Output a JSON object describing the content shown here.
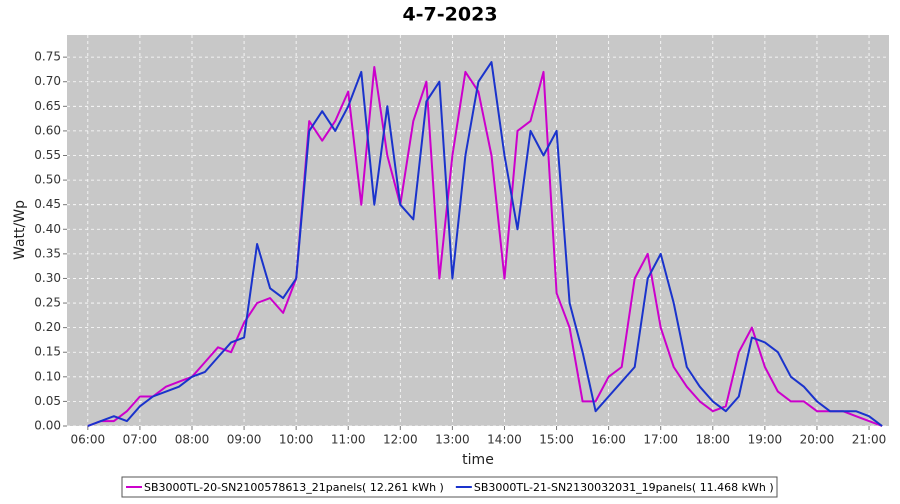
{
  "chart_data": {
    "type": "line",
    "title": "4-7-2023",
    "x_label": "time",
    "y_label": "Watt/Wp",
    "x": [
      "06:00",
      "06:15",
      "06:30",
      "06:45",
      "07:00",
      "07:15",
      "07:30",
      "07:45",
      "08:00",
      "08:15",
      "08:30",
      "08:45",
      "09:00",
      "09:15",
      "09:30",
      "09:45",
      "10:00",
      "10:15",
      "10:30",
      "10:45",
      "11:00",
      "11:15",
      "11:30",
      "11:45",
      "12:00",
      "12:15",
      "12:30",
      "12:45",
      "13:00",
      "13:15",
      "13:30",
      "13:45",
      "14:00",
      "14:15",
      "14:30",
      "14:45",
      "15:00",
      "15:15",
      "15:30",
      "15:45",
      "16:00",
      "16:15",
      "16:30",
      "16:45",
      "17:00",
      "17:15",
      "17:30",
      "17:45",
      "18:00",
      "18:15",
      "18:30",
      "18:45",
      "19:00",
      "19:15",
      "19:30",
      "19:45",
      "20:00",
      "20:15",
      "20:30",
      "20:45",
      "21:00",
      "21:15"
    ],
    "series": [
      {
        "name": "SB3000TL-20-SN2100578613_21panels( 12.261 kWh )",
        "color": "#cc00cc",
        "values": [
          0.0,
          0.01,
          0.01,
          0.03,
          0.06,
          0.06,
          0.08,
          0.09,
          0.1,
          0.13,
          0.16,
          0.15,
          0.21,
          0.25,
          0.26,
          0.23,
          0.3,
          0.62,
          0.58,
          0.62,
          0.68,
          0.45,
          0.73,
          0.55,
          0.45,
          0.62,
          0.7,
          0.3,
          0.55,
          0.72,
          0.68,
          0.55,
          0.3,
          0.6,
          0.62,
          0.72,
          0.27,
          0.2,
          0.05,
          0.05,
          0.1,
          0.12,
          0.3,
          0.35,
          0.2,
          0.12,
          0.08,
          0.05,
          0.03,
          0.04,
          0.15,
          0.2,
          0.12,
          0.07,
          0.05,
          0.05,
          0.03,
          0.03,
          0.03,
          0.02,
          0.01,
          0.0
        ]
      },
      {
        "name": "SB3000TL-21-SN2130032031_19panels( 11.468 kWh )",
        "color": "#1a33cc",
        "values": [
          0.0,
          0.01,
          0.02,
          0.01,
          0.04,
          0.06,
          0.07,
          0.08,
          0.1,
          0.11,
          0.14,
          0.17,
          0.18,
          0.37,
          0.28,
          0.26,
          0.3,
          0.6,
          0.64,
          0.6,
          0.65,
          0.72,
          0.45,
          0.65,
          0.45,
          0.42,
          0.66,
          0.7,
          0.3,
          0.55,
          0.7,
          0.74,
          0.55,
          0.4,
          0.6,
          0.55,
          0.6,
          0.25,
          0.15,
          0.03,
          0.06,
          0.09,
          0.12,
          0.3,
          0.35,
          0.25,
          0.12,
          0.08,
          0.05,
          0.03,
          0.06,
          0.18,
          0.17,
          0.15,
          0.1,
          0.08,
          0.05,
          0.03,
          0.03,
          0.03,
          0.02,
          0.0
        ]
      }
    ],
    "xlim": [
      "05:36",
      "21:23"
    ],
    "xticks": [
      "06:00",
      "07:00",
      "08:00",
      "09:00",
      "10:00",
      "11:00",
      "12:00",
      "13:00",
      "14:00",
      "15:00",
      "16:00",
      "17:00",
      "18:00",
      "19:00",
      "20:00",
      "21:00"
    ],
    "ylim": [
      0,
      0.795
    ],
    "yticks": [
      {
        "value": 0,
        "label": "0.00"
      },
      0.05,
      {
        "value": 0.1,
        "label": "0.10"
      },
      0.15,
      {
        "value": 0.2,
        "label": "0.20"
      },
      0.25,
      {
        "value": 0.3,
        "label": "0.30"
      },
      0.35,
      {
        "value": 0.4,
        "label": "0.40"
      },
      0.45,
      {
        "value": 0.5,
        "label": "0.50"
      },
      0.55,
      {
        "value": 0.6,
        "label": "0.60"
      },
      0.65,
      {
        "value": 0.7,
        "label": "0.70"
      },
      0.75
    ],
    "grid": true,
    "legend": "bottom"
  }
}
